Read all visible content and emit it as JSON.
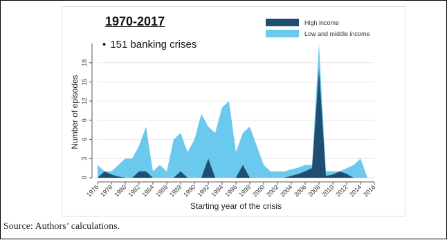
{
  "source_text": "Source: Authors’ calculations.",
  "annotation": {
    "title": "1970-2017",
    "bullet": "151 banking crises"
  },
  "chart_data": {
    "type": "area",
    "title": "",
    "xlabel": "Starting year of the crisis",
    "ylabel": "Number of episodes",
    "xlim": [
      1976,
      2016
    ],
    "ylim": [
      0,
      21
    ],
    "yticks": [
      0,
      3,
      6,
      9,
      12,
      15,
      18
    ],
    "xticks": [
      1976,
      1978,
      1980,
      1982,
      1984,
      1986,
      1988,
      1990,
      1992,
      1994,
      1996,
      1998,
      2000,
      2002,
      2004,
      2006,
      2008,
      2010,
      2012,
      2014,
      2016
    ],
    "legend_position": "top-right",
    "series": [
      {
        "name": "Low and middle income",
        "color": "#6ac9ec",
        "points": [
          [
            1976,
            2
          ],
          [
            1977,
            1
          ],
          [
            1978,
            1
          ],
          [
            1979,
            2
          ],
          [
            1980,
            3
          ],
          [
            1981,
            3
          ],
          [
            1982,
            5
          ],
          [
            1983,
            8
          ],
          [
            1984,
            1
          ],
          [
            1985,
            2
          ],
          [
            1986,
            1
          ],
          [
            1987,
            6
          ],
          [
            1988,
            7
          ],
          [
            1989,
            4
          ],
          [
            1990,
            6
          ],
          [
            1991,
            10
          ],
          [
            1992,
            8
          ],
          [
            1993,
            7
          ],
          [
            1994,
            11
          ],
          [
            1995,
            12
          ],
          [
            1996,
            4
          ],
          [
            1997,
            7
          ],
          [
            1998,
            8
          ],
          [
            1999,
            5
          ],
          [
            2000,
            2
          ],
          [
            2001,
            1
          ],
          [
            2002,
            1
          ],
          [
            2003,
            1
          ],
          [
            2004,
            1.3
          ],
          [
            2005,
            1.6
          ],
          [
            2006,
            2
          ],
          [
            2007,
            2
          ],
          [
            2008,
            21
          ],
          [
            2009,
            1
          ],
          [
            2010,
            1
          ],
          [
            2011,
            1
          ],
          [
            2012,
            1.5
          ],
          [
            2013,
            2
          ],
          [
            2014,
            3
          ],
          [
            2015,
            0
          ]
        ]
      },
      {
        "name": "High income",
        "color": "#1e4f73",
        "points": [
          [
            1976,
            0
          ],
          [
            1977,
            1
          ],
          [
            1978,
            0.5
          ],
          [
            1979,
            0.2
          ],
          [
            1980,
            0
          ],
          [
            1981,
            0
          ],
          [
            1982,
            1
          ],
          [
            1983,
            1
          ],
          [
            1984,
            0
          ],
          [
            1985,
            0
          ],
          [
            1986,
            0
          ],
          [
            1987,
            0
          ],
          [
            1988,
            1
          ],
          [
            1989,
            0
          ],
          [
            1990,
            0
          ],
          [
            1991,
            0
          ],
          [
            1992,
            3
          ],
          [
            1993,
            0
          ],
          [
            1994,
            0
          ],
          [
            1995,
            0
          ],
          [
            1996,
            0
          ],
          [
            1997,
            2
          ],
          [
            1998,
            0
          ],
          [
            1999,
            0
          ],
          [
            2000,
            0
          ],
          [
            2001,
            0
          ],
          [
            2002,
            0
          ],
          [
            2003,
            0
          ],
          [
            2004,
            0.3
          ],
          [
            2005,
            0.6
          ],
          [
            2006,
            1
          ],
          [
            2007,
            1.5
          ],
          [
            2008,
            17
          ],
          [
            2009,
            0.3
          ],
          [
            2010,
            0.5
          ],
          [
            2011,
            1
          ],
          [
            2012,
            0.6
          ],
          [
            2013,
            0
          ],
          [
            2014,
            0
          ],
          [
            2015,
            0
          ]
        ]
      }
    ]
  }
}
